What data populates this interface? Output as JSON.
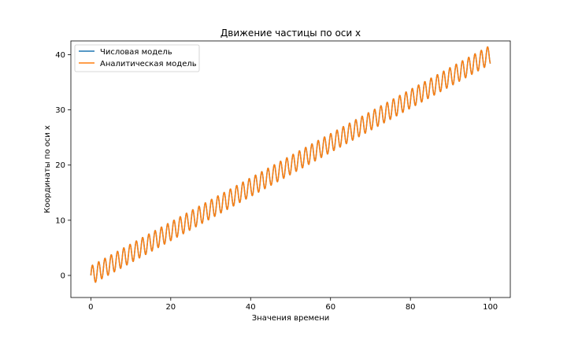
{
  "chart_data": {
    "type": "line",
    "title": "Движение частицы по оси x",
    "xlabel": "Значения времени",
    "ylabel": "Координаты по оси x",
    "xlim": [
      -5,
      105
    ],
    "ylim": [
      -4,
      42.5
    ],
    "xticks": [
      0,
      20,
      40,
      60,
      80,
      100
    ],
    "yticks": [
      0,
      10,
      20,
      30,
      40
    ],
    "grid": false,
    "legend_position": "top-left",
    "model": {
      "t_start": 0,
      "t_end": 100,
      "slope": 0.4,
      "amplitude": 1.7,
      "period": 1.57
    },
    "series": [
      {
        "name": "Числовая модель",
        "color": "#1f77b4"
      },
      {
        "name": "Аналитическая модель",
        "color": "#ff7f0e"
      }
    ]
  }
}
